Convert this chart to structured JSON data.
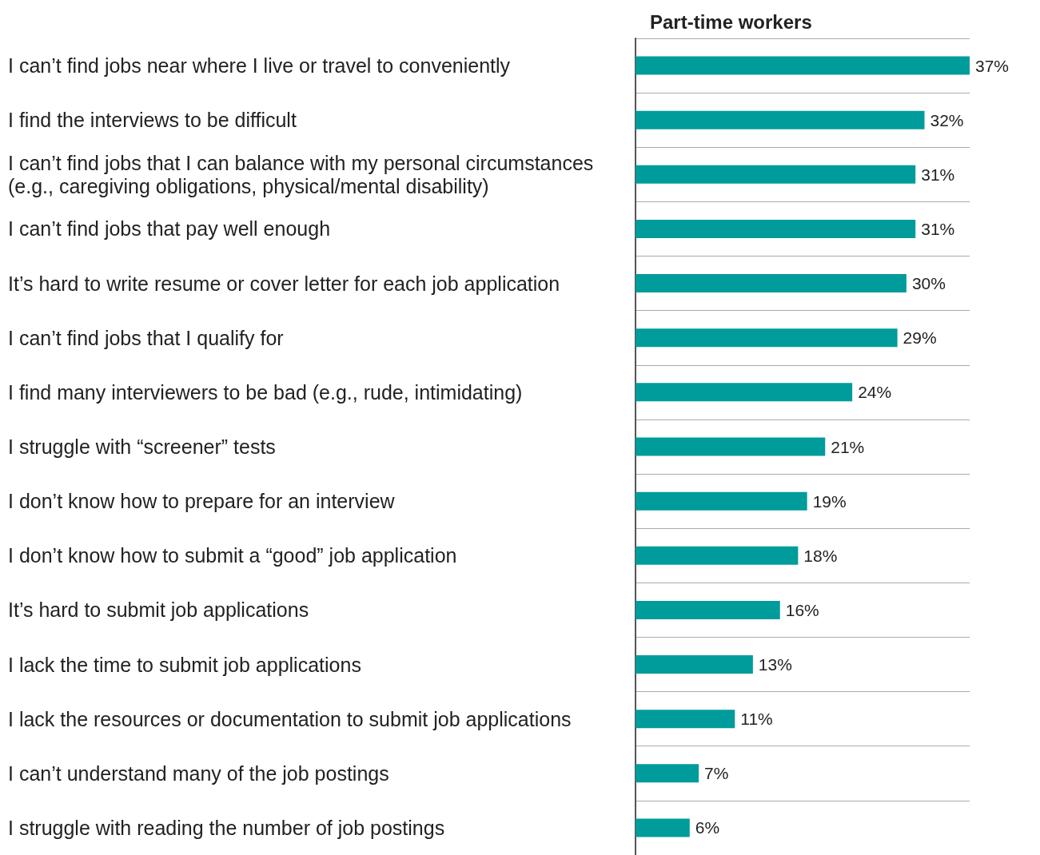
{
  "chart_data": {
    "type": "bar",
    "orientation": "horizontal",
    "title": "Part-time workers",
    "categories": [
      "I can’t find jobs near where I live or travel to conveniently",
      "I find the interviews to be difficult",
      "I can’t find jobs that I can balance with my personal circumstances (e.g., caregiving obligations, physical/mental disability)",
      "I can’t find jobs that pay well enough",
      "It’s hard to write resume or cover letter for each job application",
      "I can’t find jobs that I qualify for",
      "I find many interviewers to be bad (e.g., rude, intimidating)",
      "I struggle with “screener” tests",
      "I don’t know how to prepare for an interview",
      "I don’t know how to submit a “good” job application",
      "It’s hard to submit job applications",
      "I lack the time to submit job applications",
      "I lack the resources or documentation to submit job applications",
      "I can’t understand many of the job postings",
      "I struggle with reading the number of job postings"
    ],
    "values": [
      37,
      32,
      31,
      31,
      30,
      29,
      24,
      21,
      19,
      18,
      16,
      13,
      11,
      7,
      6
    ],
    "value_labels": [
      "37%",
      "32%",
      "31%",
      "31%",
      "30%",
      "29%",
      "24%",
      "21%",
      "19%",
      "18%",
      "16%",
      "13%",
      "11%",
      "7%",
      "6%"
    ],
    "color": "#009b9b",
    "grid": "y"
  }
}
